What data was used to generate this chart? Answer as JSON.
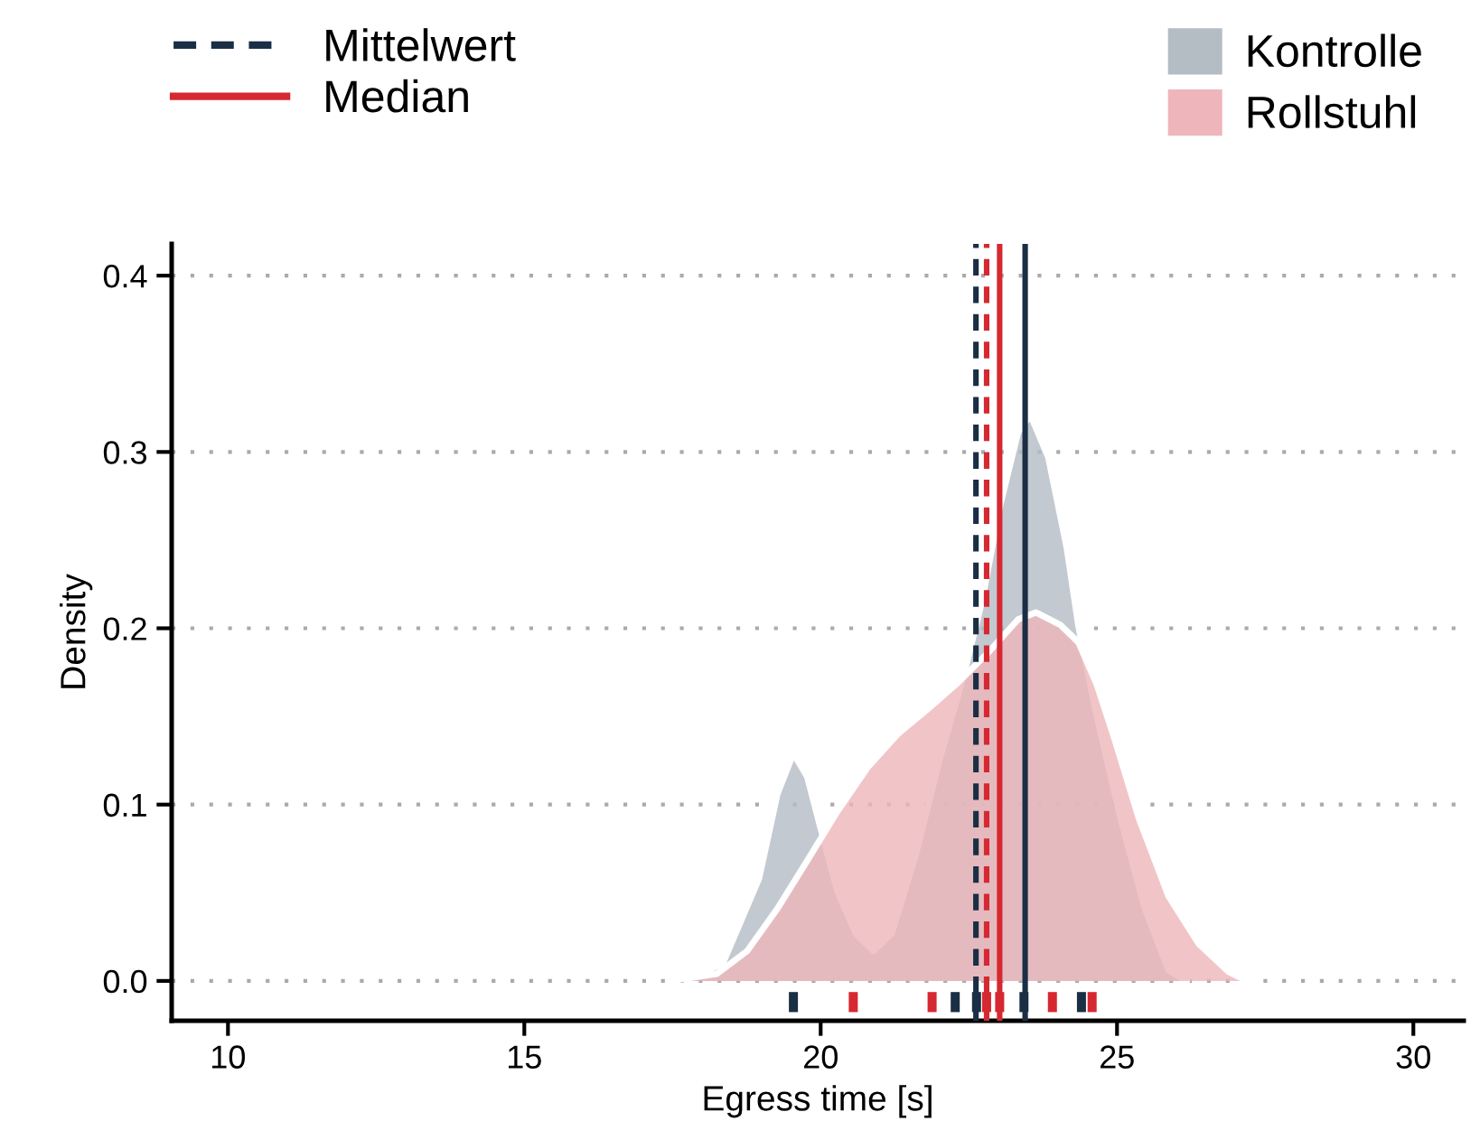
{
  "chart_data": {
    "type": "area",
    "xlabel": "Egress time [s]",
    "ylabel": "Density",
    "xlim": [
      9.05,
      30.85
    ],
    "ylim": [
      -0.0226,
      0.418
    ],
    "xticks": [
      10,
      15,
      20,
      25,
      30
    ],
    "yticks": [
      {
        "value": 0,
        "label": "0.0"
      },
      0.1,
      0.2,
      0.3,
      0.4
    ],
    "grid": "y",
    "legend": "top right",
    "series": [
      {
        "name": "Kontrolle",
        "color": "#b4bcc4",
        "x": [
          17.74,
          18.35,
          18.96,
          19.27,
          19.54,
          19.77,
          19.98,
          20.28,
          20.59,
          20.89,
          21.2,
          21.6,
          22.01,
          22.42,
          22.72,
          23.03,
          23.33,
          23.54,
          23.84,
          24.15,
          24.35,
          24.66,
          25.06,
          25.47,
          25.87,
          26.18
        ],
        "values": [
          0,
          0.01,
          0.058,
          0.106,
          0.129,
          0.116,
          0.089,
          0.051,
          0.027,
          0.017,
          0.027,
          0.071,
          0.126,
          0.174,
          0.215,
          0.27,
          0.311,
          0.321,
          0.297,
          0.246,
          0.201,
          0.15,
          0.092,
          0.041,
          0.006,
          0
        ]
      },
      {
        "name": "Rollstuhl",
        "color": "#eeb6ba",
        "x": [
          17.44,
          18.25,
          18.76,
          19.27,
          19.77,
          20.28,
          20.79,
          21.3,
          21.8,
          22.31,
          22.82,
          23.33,
          23.63,
          24.04,
          24.35,
          24.66,
          24.96,
          25.37,
          25.87,
          26.38,
          26.89,
          27.2
        ],
        "values": [
          0,
          0.004,
          0.017,
          0.041,
          0.068,
          0.096,
          0.121,
          0.14,
          0.154,
          0.169,
          0.186,
          0.205,
          0.209,
          0.202,
          0.192,
          0.168,
          0.137,
          0.092,
          0.048,
          0.021,
          0.005,
          0
        ]
      },
      {
        "type": "scatter",
        "color": "#1a2e44",
        "x": [
          19.54,
          22.27,
          22.63,
          23.43,
          24.4
        ],
        "values": [
          -0.012,
          -0.012,
          -0.012,
          -0.012,
          -0.012
        ]
      },
      {
        "type": "scatter",
        "color": "#d62830",
        "x": [
          20.55,
          21.88,
          22.8,
          23.02,
          23.91,
          24.58
        ],
        "values": [
          -0.012,
          -0.012,
          -0.012,
          -0.012,
          -0.012,
          -0.012
        ]
      }
    ],
    "ref_lines": [
      {
        "axis": "x",
        "value": 22.62,
        "label": "Mittelwert",
        "color": "#1a2e44",
        "line_style": "dashed"
      },
      {
        "axis": "x",
        "value": 22.8,
        "color": "#d62830",
        "line_style": "dashed"
      },
      {
        "axis": "x",
        "value": 23.02,
        "label": "Median",
        "color": "#d62830",
        "line_style": "solid"
      },
      {
        "axis": "x",
        "value": 23.45,
        "color": "#1a2e44",
        "line_style": "solid"
      }
    ]
  }
}
